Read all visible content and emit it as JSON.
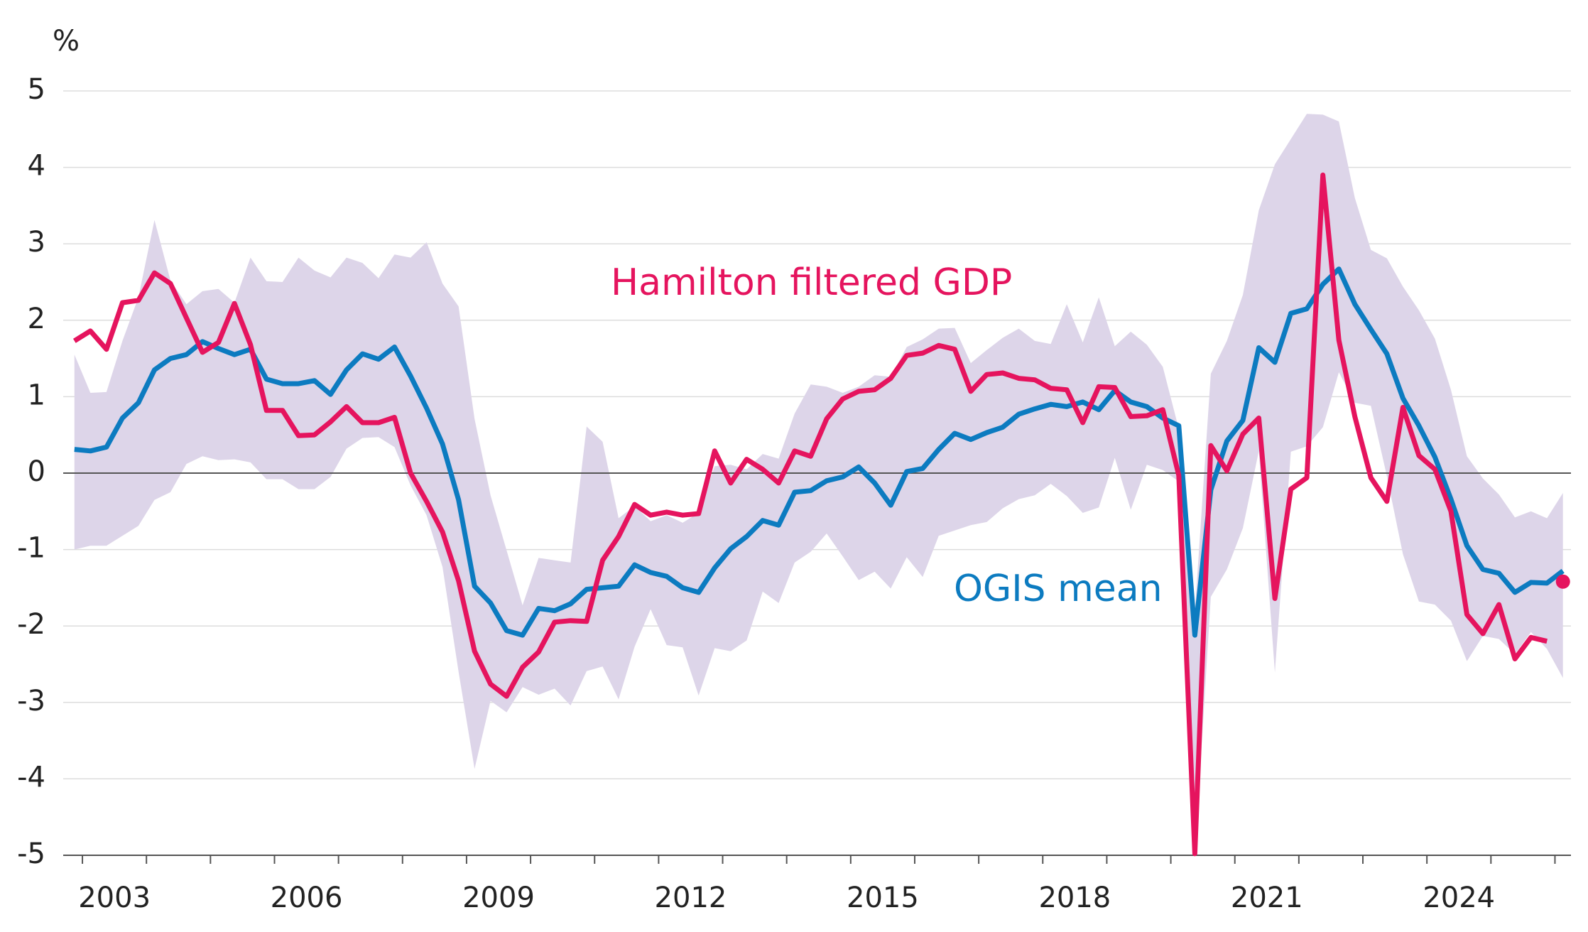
{
  "chart_data": {
    "type": "line",
    "y_unit": "%",
    "x": [
      2002.875,
      2003.125,
      2003.375,
      2003.625,
      2003.875,
      2004.125,
      2004.375,
      2004.625,
      2004.875,
      2005.125,
      2005.375,
      2005.625,
      2005.875,
      2006.125,
      2006.375,
      2006.625,
      2006.875,
      2007.125,
      2007.375,
      2007.625,
      2007.875,
      2008.125,
      2008.375,
      2008.625,
      2008.875,
      2009.125,
      2009.375,
      2009.625,
      2009.875,
      2010.125,
      2010.375,
      2010.625,
      2010.875,
      2011.125,
      2011.375,
      2011.625,
      2011.875,
      2012.125,
      2012.375,
      2012.625,
      2012.875,
      2013.125,
      2013.375,
      2013.625,
      2013.875,
      2014.125,
      2014.375,
      2014.625,
      2014.875,
      2015.125,
      2015.375,
      2015.625,
      2015.875,
      2016.125,
      2016.375,
      2016.625,
      2016.875,
      2017.125,
      2017.375,
      2017.625,
      2017.875,
      2018.125,
      2018.375,
      2018.625,
      2018.875,
      2019.125,
      2019.375,
      2019.625,
      2019.875,
      2020.125,
      2020.375,
      2020.625,
      2020.875,
      2021.125,
      2021.375,
      2021.625,
      2021.875,
      2022.125,
      2022.375,
      2022.625,
      2022.875,
      2023.125,
      2023.375,
      2023.625,
      2023.875,
      2024.125,
      2024.375,
      2024.625,
      2024.875,
      2025.125,
      2025.375,
      2025.625,
      2025.875,
      2026.125
    ],
    "band": {
      "color": "#ddd5e9",
      "upper": [
        1.55,
        1.05,
        1.06,
        1.73,
        2.3,
        3.31,
        2.52,
        2.21,
        2.38,
        2.41,
        2.23,
        2.82,
        2.51,
        2.5,
        2.82,
        2.65,
        2.56,
        2.82,
        2.75,
        2.55,
        2.86,
        2.82,
        3.02,
        2.48,
        2.18,
        0.71,
        -0.29,
        -1.01,
        -1.73,
        -1.11,
        -1.14,
        -1.17,
        0.61,
        0.41,
        -0.59,
        -0.43,
        -0.63,
        -0.55,
        -0.65,
        -0.52,
        0.09,
        0.11,
        0.05,
        0.25,
        0.19,
        0.78,
        1.16,
        1.13,
        1.05,
        1.13,
        1.28,
        1.26,
        1.65,
        1.75,
        1.89,
        1.9,
        1.44,
        1.61,
        1.77,
        1.89,
        1.73,
        1.69,
        2.21,
        1.71,
        2.3,
        1.66,
        1.85,
        1.68,
        1.39,
        0.58,
        -1.82,
        1.3,
        1.73,
        2.33,
        3.44,
        4.04,
        4.37,
        4.7,
        4.69,
        4.6,
        3.6,
        2.92,
        2.81,
        2.44,
        2.13,
        1.76,
        1.09,
        0.22,
        -0.07,
        -0.28,
        -0.58,
        -0.5,
        -0.59,
        -0.26
      ],
      "lower": [
        -1.0,
        -0.95,
        -0.95,
        -0.82,
        -0.69,
        -0.35,
        -0.25,
        0.12,
        0.22,
        0.17,
        0.18,
        0.14,
        -0.08,
        -0.08,
        -0.21,
        -0.21,
        -0.05,
        0.32,
        0.46,
        0.47,
        0.34,
        -0.16,
        -0.55,
        -1.23,
        -2.6,
        -3.87,
        -2.98,
        -3.13,
        -2.8,
        -2.9,
        -2.82,
        -3.04,
        -2.59,
        -2.53,
        -2.96,
        -2.27,
        -1.78,
        -2.25,
        -2.28,
        -2.91,
        -2.29,
        -2.33,
        -2.19,
        -1.55,
        -1.7,
        -1.17,
        -1.03,
        -0.79,
        -1.09,
        -1.4,
        -1.29,
        -1.51,
        -1.1,
        -1.36,
        -0.82,
        -0.75,
        -0.68,
        -0.64,
        -0.46,
        -0.34,
        -0.29,
        -0.14,
        -0.3,
        -0.52,
        -0.45,
        0.2,
        -0.48,
        0.11,
        0.04,
        -0.11,
        -5.0,
        -1.62,
        -1.26,
        -0.72,
        0.29,
        -2.61,
        0.28,
        0.35,
        0.6,
        1.32,
        0.92,
        0.88,
        -0.04,
        -1.06,
        -1.68,
        -1.72,
        -1.93,
        -2.46,
        -2.13,
        -2.17,
        -2.37,
        -2.08,
        -2.3,
        -2.68
      ]
    },
    "series": [
      {
        "name": "OGIS mean",
        "color": "#0c7bc0",
        "values": [
          0.31,
          0.29,
          0.34,
          0.72,
          0.92,
          1.35,
          1.5,
          1.55,
          1.72,
          1.63,
          1.55,
          1.62,
          1.23,
          1.17,
          1.17,
          1.21,
          1.03,
          1.35,
          1.56,
          1.49,
          1.65,
          1.27,
          0.85,
          0.38,
          -0.35,
          -1.48,
          -1.7,
          -2.06,
          -2.12,
          -1.77,
          -1.8,
          -1.71,
          -1.52,
          -1.5,
          -1.48,
          -1.2,
          -1.3,
          -1.35,
          -1.5,
          -1.56,
          -1.24,
          -0.99,
          -0.83,
          -0.62,
          -0.68,
          -0.25,
          -0.23,
          -0.1,
          -0.05,
          0.08,
          -0.13,
          -0.42,
          0.02,
          0.06,
          0.31,
          0.52,
          0.44,
          0.53,
          0.6,
          0.77,
          0.84,
          0.9,
          0.87,
          0.93,
          0.83,
          1.08,
          0.93,
          0.87,
          0.72,
          0.62,
          -2.12,
          -0.22,
          0.42,
          0.69,
          1.64,
          1.45,
          2.09,
          2.15,
          2.47,
          2.67,
          2.21,
          1.88,
          1.56,
          0.98,
          0.62,
          0.21,
          -0.34,
          -0.95,
          -1.26,
          -1.31,
          -1.56,
          -1.43,
          -1.44,
          -1.28
        ]
      },
      {
        "name": "Hamilton filtered GDP",
        "color": "#e5145e",
        "values": [
          1.73,
          1.86,
          1.62,
          2.23,
          2.26,
          2.62,
          2.48,
          2.03,
          1.58,
          1.71,
          2.22,
          1.68,
          0.82,
          0.82,
          0.49,
          0.5,
          0.67,
          0.87,
          0.66,
          0.66,
          0.73,
          0.0,
          -0.37,
          -0.77,
          -1.41,
          -2.33,
          -2.76,
          -2.92,
          -2.54,
          -2.34,
          -1.95,
          -1.93,
          -1.94,
          -1.14,
          -0.83,
          -0.41,
          -0.55,
          -0.51,
          -0.55,
          -0.53,
          0.29,
          -0.13,
          0.18,
          0.05,
          -0.13,
          0.29,
          0.22,
          0.71,
          0.97,
          1.07,
          1.09,
          1.24,
          1.54,
          1.57,
          1.67,
          1.62,
          1.07,
          1.29,
          1.31,
          1.24,
          1.22,
          1.11,
          1.09,
          0.66,
          1.13,
          1.12,
          0.74,
          0.75,
          0.83,
          -0.03,
          -4.98,
          0.36,
          0.03,
          0.51,
          0.72,
          -1.64,
          -0.21,
          -0.06,
          3.9,
          1.74,
          0.74,
          -0.06,
          -0.37,
          0.86,
          0.23,
          0.05,
          -0.5,
          -1.85,
          -2.1,
          -1.72,
          -2.43,
          -2.15,
          -2.2,
          null
        ],
        "end_marker": -1.42
      }
    ],
    "xlim": [
      2002.7,
      2026.25
    ],
    "xticks": [
      {
        "value": 2003.5,
        "label": "2003"
      },
      {
        "value": 2006.5,
        "label": "2006"
      },
      {
        "value": 2009.5,
        "label": "2009"
      },
      {
        "value": 2012.5,
        "label": "2012"
      },
      {
        "value": 2015.5,
        "label": "2015"
      },
      {
        "value": 2018.5,
        "label": "2018"
      },
      {
        "value": 2021.5,
        "label": "2021"
      },
      {
        "value": 2024.5,
        "label": "2024"
      }
    ],
    "xminorticks": [
      2003,
      2004,
      2005,
      2006,
      2007,
      2008,
      2009,
      2010,
      2011,
      2012,
      2013,
      2014,
      2015,
      2016,
      2017,
      2018,
      2019,
      2020,
      2021,
      2022,
      2023,
      2024,
      2025,
      2026
    ],
    "ylim": [
      -5,
      5
    ],
    "yticks": [
      -5,
      -4,
      -3,
      -2,
      -1,
      0,
      1,
      2,
      3,
      4,
      5
    ],
    "grid": true
  }
}
